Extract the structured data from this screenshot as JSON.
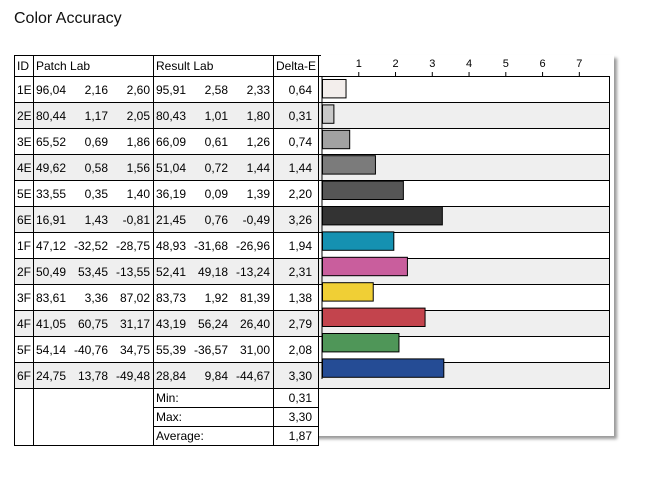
{
  "title": "Color Accuracy",
  "chart_data": {
    "type": "bar",
    "orientation": "horizontal",
    "xlim": [
      0,
      7.78
    ],
    "ticks": [
      1,
      2,
      3,
      4,
      5,
      6,
      7
    ],
    "columns": {
      "id": "ID",
      "patch": "Patch Lab",
      "result": "Result Lab",
      "de": "Delta-E"
    },
    "rows": [
      {
        "id": "1E",
        "patch": [
          "96,04",
          "2,16",
          "2,60"
        ],
        "result": [
          "95,91",
          "2,58",
          "2,33"
        ],
        "de_label": "0,64",
        "value": 0.64,
        "color": "#f3eeec"
      },
      {
        "id": "2E",
        "patch": [
          "80,44",
          "1,17",
          "2,05"
        ],
        "result": [
          "80,43",
          "1,01",
          "1,80"
        ],
        "de_label": "0,31",
        "value": 0.31,
        "color": "#c8c8c8"
      },
      {
        "id": "3E",
        "patch": [
          "65,52",
          "0,69",
          "1,86"
        ],
        "result": [
          "66,09",
          "0,61",
          "1,26"
        ],
        "de_label": "0,74",
        "value": 0.74,
        "color": "#a2a2a2"
      },
      {
        "id": "4E",
        "patch": [
          "49,62",
          "0,58",
          "1,56"
        ],
        "result": [
          "51,04",
          "0,72",
          "1,44"
        ],
        "de_label": "1,44",
        "value": 1.44,
        "color": "#7b7b7b"
      },
      {
        "id": "5E",
        "patch": [
          "33,55",
          "0,35",
          "1,40"
        ],
        "result": [
          "36,19",
          "0,09",
          "1,39"
        ],
        "de_label": "2,20",
        "value": 2.2,
        "color": "#565656"
      },
      {
        "id": "6E",
        "patch": [
          "16,91",
          "1,43",
          "-0,81"
        ],
        "result": [
          "21,45",
          "0,76",
          "-0,49"
        ],
        "de_label": "3,26",
        "value": 3.26,
        "color": "#333333"
      },
      {
        "id": "1F",
        "patch": [
          "47,12",
          "-32,52",
          "-28,75"
        ],
        "result": [
          "48,93",
          "-31,68",
          "-26,96"
        ],
        "de_label": "1,94",
        "value": 1.94,
        "color": "#1591b1"
      },
      {
        "id": "2F",
        "patch": [
          "50,49",
          "53,45",
          "-13,55"
        ],
        "result": [
          "52,41",
          "49,18",
          "-13,24"
        ],
        "de_label": "2,31",
        "value": 2.31,
        "color": "#c95e9d"
      },
      {
        "id": "3F",
        "patch": [
          "83,61",
          "3,36",
          "87,02"
        ],
        "result": [
          "83,73",
          "1,92",
          "81,39"
        ],
        "de_label": "1,38",
        "value": 1.38,
        "color": "#f0cf35"
      },
      {
        "id": "4F",
        "patch": [
          "41,05",
          "60,75",
          "31,17"
        ],
        "result": [
          "43,19",
          "56,24",
          "26,40"
        ],
        "de_label": "2,79",
        "value": 2.79,
        "color": "#c3444d"
      },
      {
        "id": "5F",
        "patch": [
          "54,14",
          "-40,76",
          "34,75"
        ],
        "result": [
          "55,39",
          "-36,57",
          "31,00"
        ],
        "de_label": "2,08",
        "value": 2.08,
        "color": "#4f9658"
      },
      {
        "id": "6F",
        "patch": [
          "24,75",
          "13,78",
          "-49,48"
        ],
        "result": [
          "28,84",
          "9,84",
          "-44,67"
        ],
        "de_label": "3,30",
        "value": 3.3,
        "color": "#254c95"
      }
    ],
    "summary": [
      {
        "label": "Min:",
        "value": "0,31"
      },
      {
        "label": "Max:",
        "value": "3,30"
      },
      {
        "label": "Average:",
        "value": "1,87"
      }
    ]
  }
}
